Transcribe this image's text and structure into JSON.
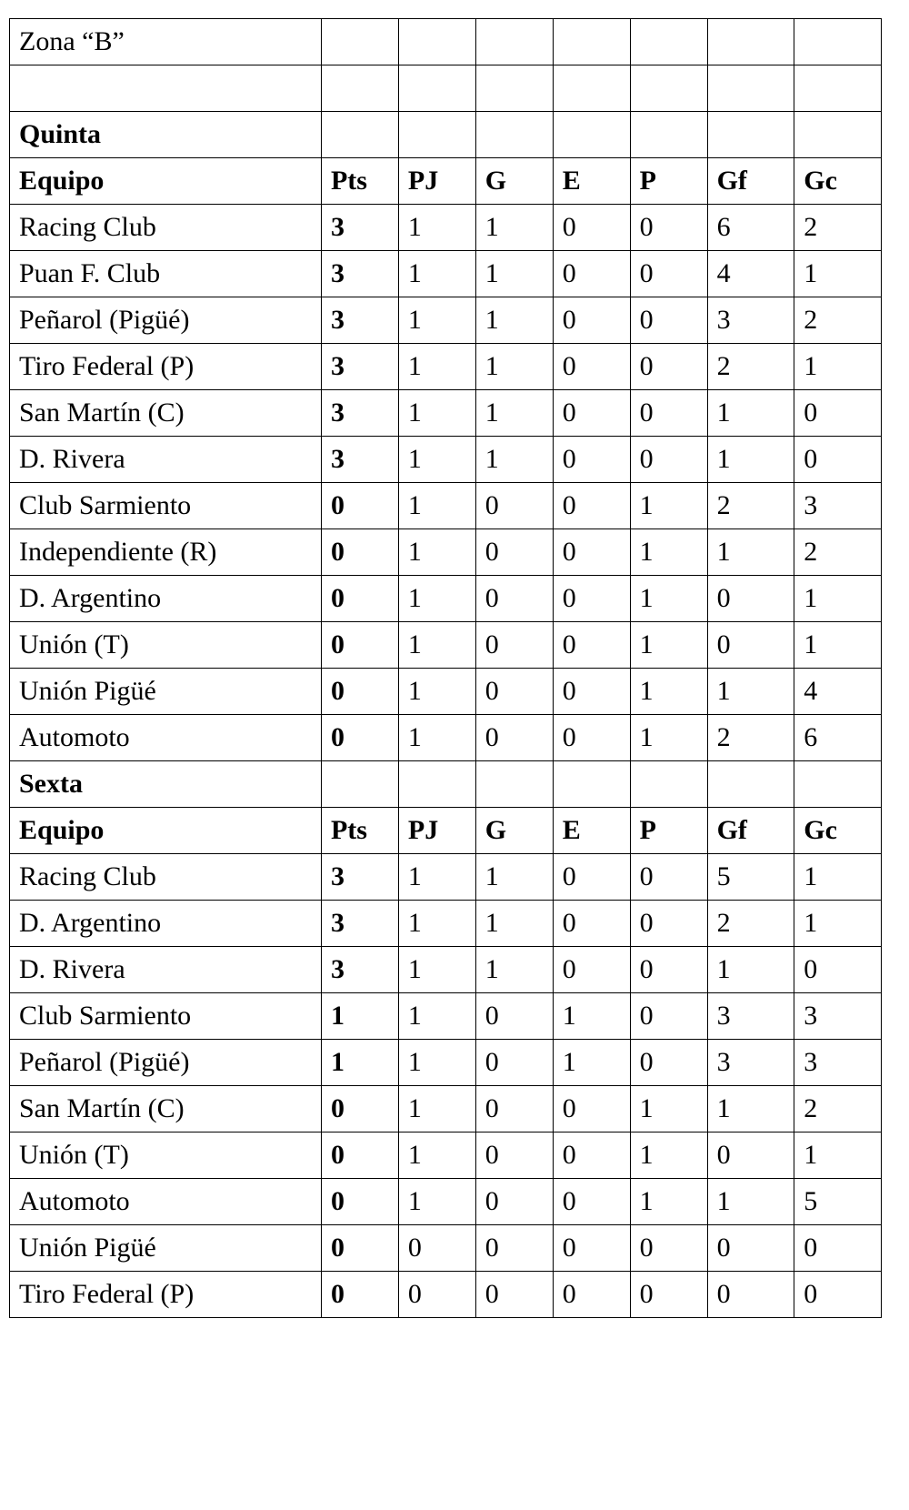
{
  "zone_title": "Zona “B”",
  "headers": {
    "equipo": "Equipo",
    "pts": "Pts",
    "pj": "PJ",
    "g": "G",
    "e": "E",
    "p": "P",
    "gf": "Gf",
    "gc": "Gc"
  },
  "quinta": {
    "title": "Quinta",
    "rows": [
      {
        "team": "Racing Club",
        "pts": "3",
        "pj": "1",
        "g": "1",
        "e": "0",
        "p": "0",
        "gf": "6",
        "gc": "2"
      },
      {
        "team": "Puan F. Club",
        "pts": "3",
        "pj": "1",
        "g": "1",
        "e": "0",
        "p": "0",
        "gf": "4",
        "gc": "1"
      },
      {
        "team": "Peñarol (Pigüé)",
        "pts": "3",
        "pj": "1",
        "g": "1",
        "e": "0",
        "p": "0",
        "gf": "3",
        "gc": "2"
      },
      {
        "team": "Tiro Federal (P)",
        "pts": "3",
        "pj": "1",
        "g": "1",
        "e": "0",
        "p": "0",
        "gf": "2",
        "gc": "1"
      },
      {
        "team": "San Martín (C)",
        "pts": "3",
        "pj": "1",
        "g": "1",
        "e": "0",
        "p": "0",
        "gf": "1",
        "gc": "0"
      },
      {
        "team": "D. Rivera",
        "pts": "3",
        "pj": "1",
        "g": "1",
        "e": "0",
        "p": "0",
        "gf": "1",
        "gc": "0"
      },
      {
        "team": "Club Sarmiento",
        "pts": "0",
        "pj": "1",
        "g": "0",
        "e": "0",
        "p": "1",
        "gf": "2",
        "gc": "3"
      },
      {
        "team": "Independiente (R)",
        "pts": "0",
        "pj": "1",
        "g": "0",
        "e": "0",
        "p": "1",
        "gf": "1",
        "gc": "2"
      },
      {
        "team": "D. Argentino",
        "pts": "0",
        "pj": "1",
        "g": "0",
        "e": "0",
        "p": "1",
        "gf": "0",
        "gc": "1"
      },
      {
        "team": "Unión (T)",
        "pts": "0",
        "pj": "1",
        "g": "0",
        "e": "0",
        "p": "1",
        "gf": "0",
        "gc": "1"
      },
      {
        "team": "Unión Pigüé",
        "pts": "0",
        "pj": "1",
        "g": "0",
        "e": "0",
        "p": "1",
        "gf": "1",
        "gc": "4"
      },
      {
        "team": "Automoto",
        "pts": "0",
        "pj": "1",
        "g": "0",
        "e": "0",
        "p": "1",
        "gf": "2",
        "gc": "6"
      }
    ]
  },
  "sexta": {
    "title": "Sexta",
    "rows": [
      {
        "team": "Racing Club",
        "pts": "3",
        "pj": "1",
        "g": "1",
        "e": "0",
        "p": "0",
        "gf": "5",
        "gc": "1"
      },
      {
        "team": "D. Argentino",
        "pts": "3",
        "pj": "1",
        "g": "1",
        "e": "0",
        "p": "0",
        "gf": "2",
        "gc": "1"
      },
      {
        "team": "D. Rivera",
        "pts": "3",
        "pj": "1",
        "g": "1",
        "e": "0",
        "p": "0",
        "gf": "1",
        "gc": "0"
      },
      {
        "team": "Club Sarmiento",
        "pts": "1",
        "pj": "1",
        "g": "0",
        "e": "1",
        "p": "0",
        "gf": "3",
        "gc": "3"
      },
      {
        "team": "Peñarol (Pigüé)",
        "pts": "1",
        "pj": "1",
        "g": "0",
        "e": "1",
        "p": "0",
        "gf": "3",
        "gc": "3"
      },
      {
        "team": "San Martín (C)",
        "pts": "0",
        "pj": "1",
        "g": "0",
        "e": "0",
        "p": "1",
        "gf": "1",
        "gc": "2"
      },
      {
        "team": "Unión (T)",
        "pts": "0",
        "pj": "1",
        "g": "0",
        "e": "0",
        "p": "1",
        "gf": "0",
        "gc": "1"
      },
      {
        "team": "Automoto",
        "pts": "0",
        "pj": "1",
        "g": "0",
        "e": "0",
        "p": "1",
        "gf": "1",
        "gc": "5"
      },
      {
        "team": "Unión Pigüé",
        "pts": "0",
        "pj": "0",
        "g": "0",
        "e": "0",
        "p": "0",
        "gf": "0",
        "gc": "0"
      },
      {
        "team": "Tiro Federal (P)",
        "pts": "0",
        "pj": "0",
        "g": "0",
        "e": "0",
        "p": "0",
        "gf": "0",
        "gc": "0"
      }
    ]
  }
}
